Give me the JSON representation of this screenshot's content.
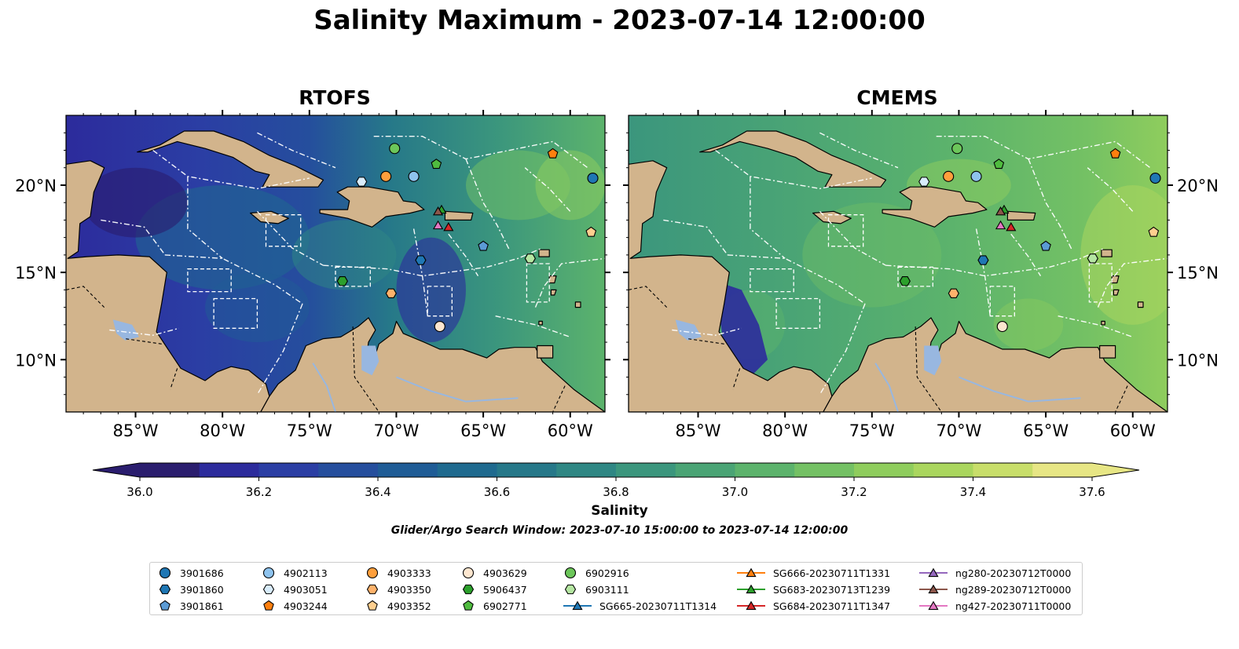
{
  "title": "Salinity Maximum - 2023-07-14 12:00:00",
  "panels": [
    {
      "title": "RTOFS"
    },
    {
      "title": "CMEMS"
    }
  ],
  "colorbar": {
    "label": "Salinity",
    "ticks": [
      "36.0",
      "36.2",
      "36.4",
      "36.6",
      "36.8",
      "37.0",
      "37.2",
      "37.4",
      "37.6"
    ],
    "colors": [
      "#2a1d6e",
      "#2c2b9c",
      "#2b3ea4",
      "#254e9d",
      "#1f5c96",
      "#1f6a8f",
      "#267889",
      "#2f8784",
      "#3b967d",
      "#4aa475",
      "#5cb36c",
      "#74c164",
      "#8fcd5d",
      "#aad65e",
      "#c8de6a",
      "#e7e685"
    ]
  },
  "search_window": "Glider/Argo Search Window: 2023-07-10 15:00:00 to 2023-07-14 12:00:00",
  "colors": {
    "land": "#d2b48c",
    "lake": "#98b7e0"
  },
  "chart_data": [
    {
      "type": "heatmap",
      "panel": "RTOFS",
      "variable": "Salinity",
      "xlim": [
        -89,
        -58
      ],
      "ylim": [
        7,
        24
      ],
      "x_ticks": [
        "85°W",
        "80°W",
        "75°W",
        "70°W",
        "65°W",
        "60°W"
      ],
      "y_ticks": [
        "10°N",
        "15°N",
        "20°N"
      ],
      "color_range": [
        36.0,
        37.6
      ]
    },
    {
      "type": "heatmap",
      "panel": "CMEMS",
      "variable": "Salinity",
      "xlim": [
        -89,
        -58
      ],
      "ylim": [
        7,
        24
      ],
      "x_ticks": [
        "85°W",
        "80°W",
        "75°W",
        "70°W",
        "65°W",
        "60°W"
      ],
      "y_ticks": [
        "10°N",
        "15°N",
        "20°N"
      ],
      "color_range": [
        36.0,
        37.6
      ]
    }
  ],
  "observations": [
    {
      "id": "3901686",
      "marker": "circle",
      "color": "#1f77b4",
      "lon": -58.7,
      "lat": 20.4
    },
    {
      "id": "3901860",
      "marker": "hexagon",
      "color": "#1f77b4",
      "lon": -68.6,
      "lat": 15.7
    },
    {
      "id": "3901861",
      "marker": "pentagon",
      "color": "#5b9bd5",
      "lon": -65.0,
      "lat": 16.5
    },
    {
      "id": "4902113",
      "marker": "circle",
      "color": "#8ec3ee",
      "lon": -69.0,
      "lat": 20.5
    },
    {
      "id": "4903051",
      "marker": "hexagon",
      "color": "#d8ecfb",
      "lon": -72.0,
      "lat": 20.2
    },
    {
      "id": "4903244",
      "marker": "pentagon",
      "color": "#ff7f0e",
      "lon": -61.0,
      "lat": 21.8
    },
    {
      "id": "4903333",
      "marker": "circle",
      "color": "#ff9f3c",
      "lon": -70.6,
      "lat": 20.5
    },
    {
      "id": "4903350",
      "marker": "hexagon",
      "color": "#ffb26b",
      "lon": -70.3,
      "lat": 13.8
    },
    {
      "id": "4903352",
      "marker": "pentagon",
      "color": "#ffcf8f",
      "lon": -58.8,
      "lat": 17.3
    },
    {
      "id": "4903629",
      "marker": "circle",
      "color": "#fde6cf",
      "lon": -67.5,
      "lat": 11.9
    },
    {
      "id": "5906437",
      "marker": "hexagon",
      "color": "#2ca02c",
      "lon": -73.1,
      "lat": 14.5
    },
    {
      "id": "6902771",
      "marker": "pentagon",
      "color": "#4fbb3f",
      "lon": -67.7,
      "lat": 21.2
    },
    {
      "id": "6902916",
      "marker": "circle",
      "color": "#6cc65a",
      "lon": -70.1,
      "lat": 22.1
    },
    {
      "id": "6903111",
      "marker": "hexagon",
      "color": "#b5e6a2",
      "lon": -62.3,
      "lat": 15.8
    },
    {
      "id": "SG665-20230711T1314",
      "marker": "triangle",
      "color": "#1f77b4",
      "line": true
    },
    {
      "id": "SG666-20230711T1331",
      "marker": "triangle",
      "color": "#ff7f0e",
      "line": true
    },
    {
      "id": "SG683-20230713T1239",
      "marker": "triangle",
      "color": "#2ca02c",
      "line": true,
      "lon": -67.4,
      "lat": 18.6
    },
    {
      "id": "SG684-20230711T1347",
      "marker": "triangle",
      "color": "#d62728",
      "line": true,
      "lon": -67.0,
      "lat": 17.6
    },
    {
      "id": "ng280-20230712T0000",
      "marker": "triangle",
      "color": "#9467bd",
      "line": true
    },
    {
      "id": "ng289-20230712T0000",
      "marker": "triangle",
      "color": "#8c564b",
      "line": true,
      "lon": -67.6,
      "lat": 18.5
    },
    {
      "id": "ng427-20230711T0000",
      "marker": "triangle",
      "color": "#e377c2",
      "line": true,
      "lon": -67.6,
      "lat": 17.7
    }
  ]
}
